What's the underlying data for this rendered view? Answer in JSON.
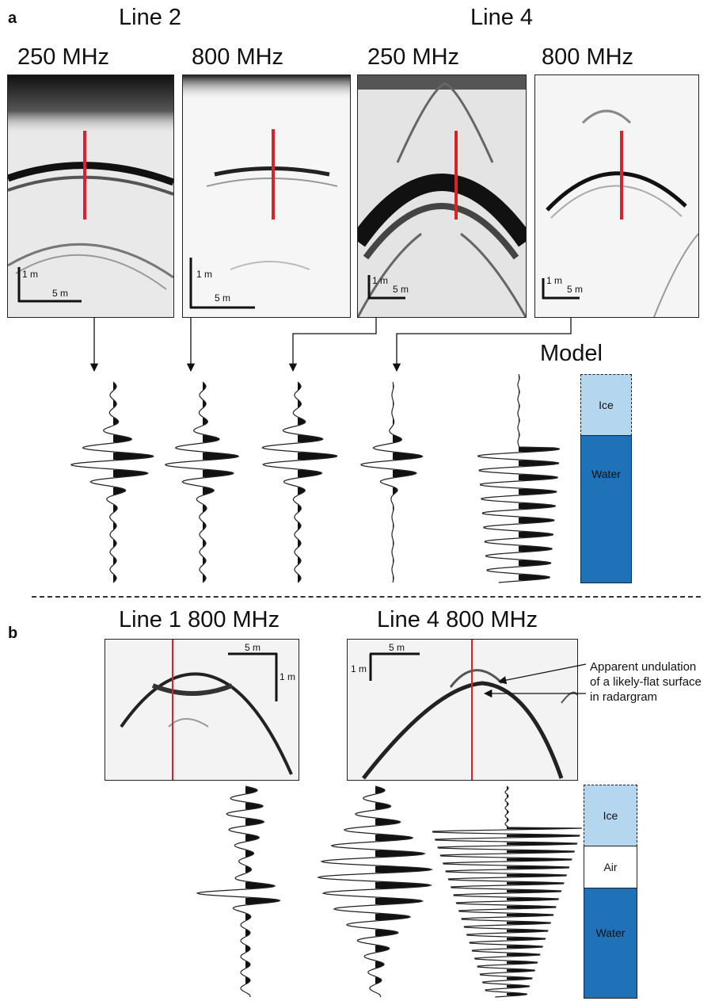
{
  "panel_a": {
    "letter": "a",
    "line2_title": "Line 2",
    "line4_title": "Line 4",
    "freq_labels": [
      "250 MHz",
      "800 MHz",
      "250 MHz",
      "800 MHz"
    ],
    "scale_vertical": "1 m",
    "scale_horizontal": "5 m",
    "model_title": "Model",
    "model_layers": [
      "Ice",
      "Water"
    ]
  },
  "panel_b": {
    "letter": "b",
    "title_left": "Line 1 800 MHz",
    "title_right": "Line 4 800 MHz",
    "scale_vertical": "1 m",
    "scale_horizontal": "5 m",
    "annotation": [
      "Apparent undulation",
      "of a likely-flat surface",
      "in radargram"
    ],
    "model_layers": [
      "Ice",
      "Air",
      "Water"
    ]
  },
  "colors": {
    "ice": "#b4d6ef",
    "water": "#1f72b8",
    "air": "#ffffff",
    "marker": "#d8232a"
  }
}
